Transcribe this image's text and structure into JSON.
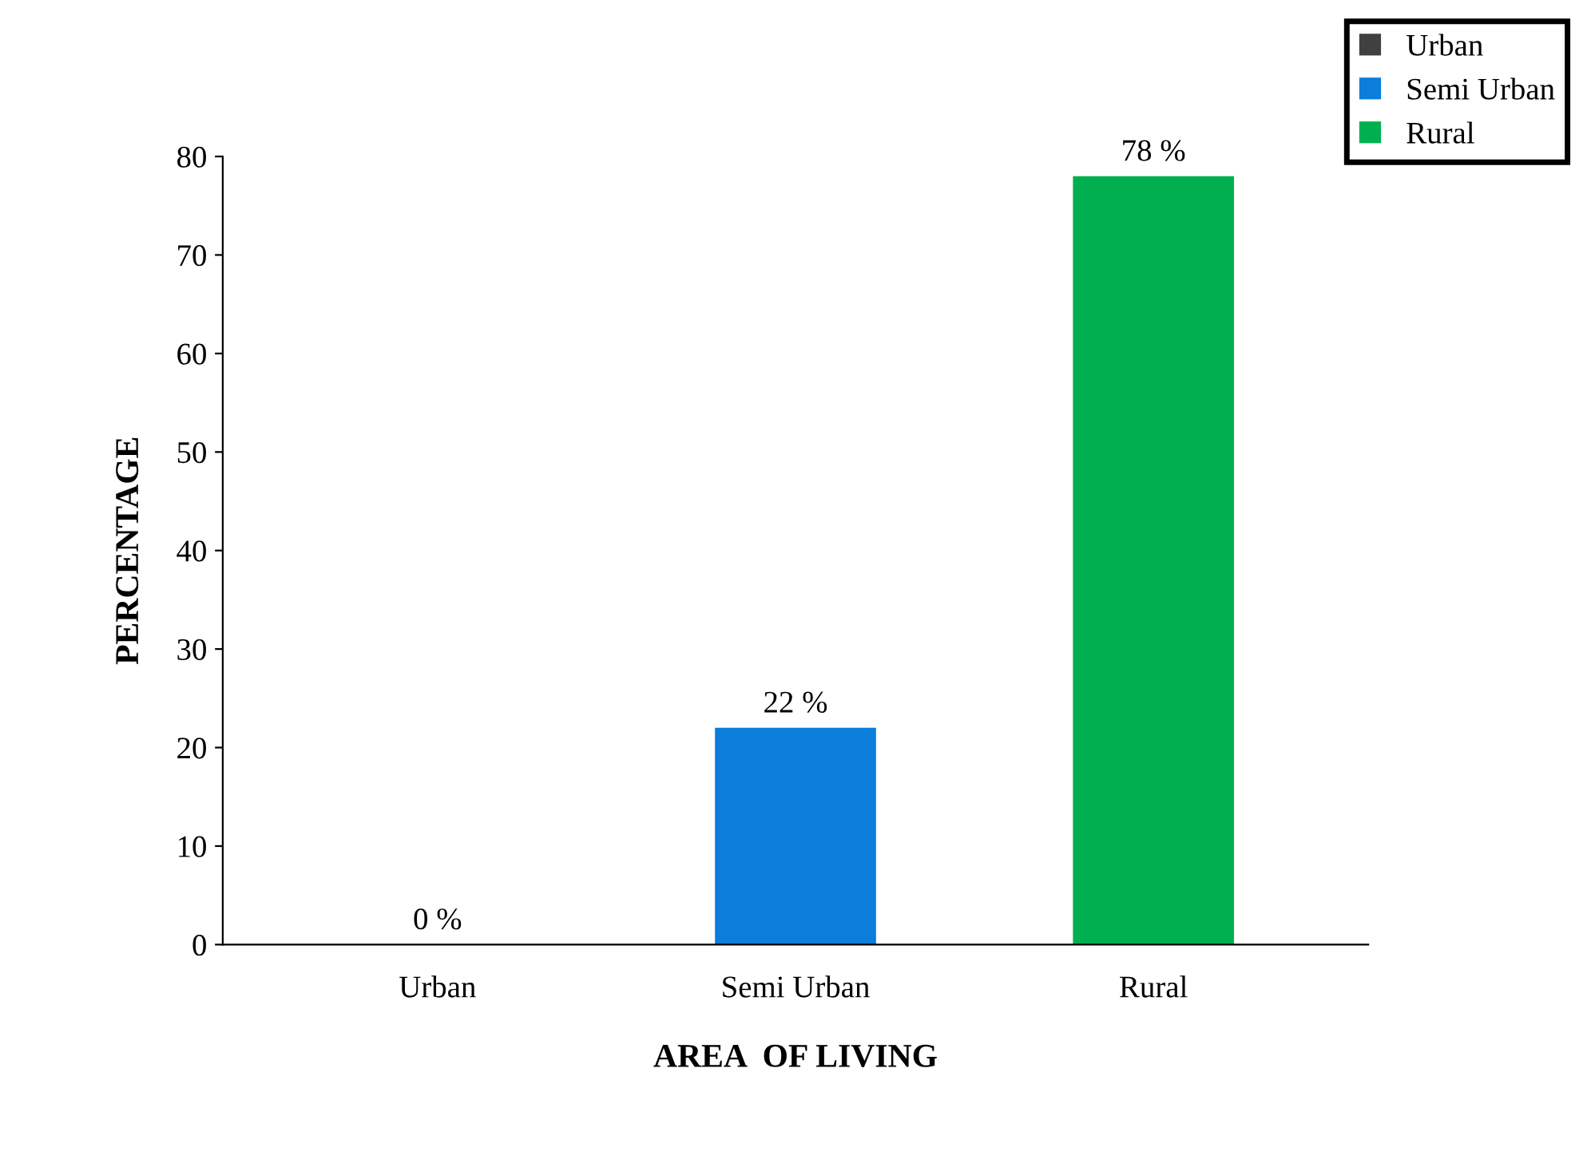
{
  "chart_data": {
    "type": "bar",
    "xlabel": "AREA  OF LIVING",
    "ylabel": "PERCENTAGE",
    "categories": [
      "Urban",
      "Semi Urban",
      "Rural"
    ],
    "series": [
      {
        "name": "Urban",
        "color": "#404040",
        "values": [
          0,
          null,
          null
        ],
        "value_labels": [
          "0 %",
          null,
          null
        ]
      },
      {
        "name": "Semi Urban",
        "color": "#0b7dda",
        "values": [
          null,
          22,
          null
        ],
        "value_labels": [
          null,
          "22 %",
          null
        ]
      },
      {
        "name": "Rural",
        "color": "#00b050",
        "values": [
          null,
          null,
          78
        ],
        "value_labels": [
          null,
          null,
          "78 %"
        ]
      }
    ],
    "ylim": [
      0,
      80
    ],
    "yticks": [
      0,
      10,
      20,
      30,
      40,
      50,
      60,
      70,
      80
    ],
    "grid": false,
    "legend": "top right"
  }
}
